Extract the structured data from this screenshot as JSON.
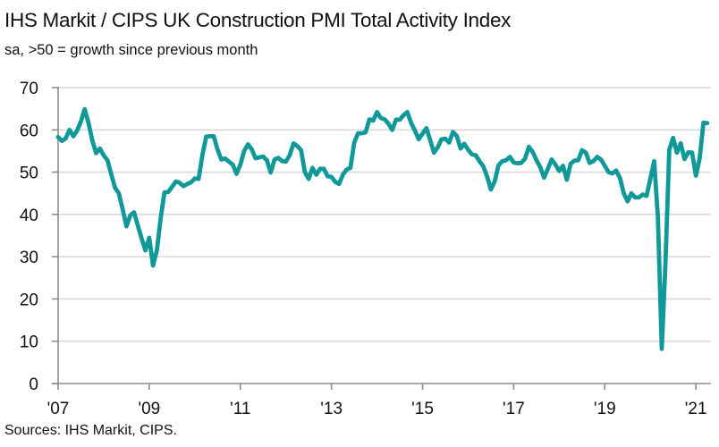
{
  "chart_data": {
    "type": "line",
    "title": "IHS Markit / CIPS UK Construction PMI Total Activity Index",
    "subtitle": "sa, >50 = growth since previous month",
    "source": "Sources: IHS Markit, CIPS.",
    "xlabel": "",
    "ylabel": "",
    "ylim": [
      0,
      70
    ],
    "yticks": [
      0,
      10,
      20,
      30,
      40,
      50,
      60,
      70
    ],
    "xticks": [
      {
        "label": "'07",
        "month_index": 0
      },
      {
        "label": "'09",
        "month_index": 24
      },
      {
        "label": "'11",
        "month_index": 48
      },
      {
        "label": "'13",
        "month_index": 72
      },
      {
        "label": "'15",
        "month_index": 96
      },
      {
        "label": "'17",
        "month_index": 120
      },
      {
        "label": "'19",
        "month_index": 144
      },
      {
        "label": "'21",
        "month_index": 168
      }
    ],
    "x_start": "2007-01",
    "x_frequency": "monthly",
    "x_end": "2021-04",
    "grid": true,
    "legend": "none",
    "line_color": "#11999a",
    "series": [
      {
        "name": "UK Construction PMI Total Activity Index",
        "values": [
          58.3,
          57.4,
          58.0,
          60.0,
          58.5,
          59.8,
          62.0,
          64.9,
          61.6,
          57.5,
          54.5,
          55.6,
          54.0,
          52.8,
          49.5,
          46.3,
          45.0,
          41.2,
          37.2,
          39.8,
          40.5,
          37.4,
          34.3,
          31.5,
          34.5,
          27.9,
          31.5,
          39.0,
          45.2,
          45.3,
          46.5,
          47.8,
          47.5,
          46.7,
          47.2,
          47.6,
          48.5,
          48.4,
          54.0,
          58.4,
          58.5,
          58.5,
          55.3,
          53.0,
          53.2,
          52.5,
          51.8,
          49.6,
          51.8,
          55.0,
          56.6,
          55.4,
          53.3,
          53.5,
          53.7,
          52.8,
          49.9,
          53.0,
          53.4,
          52.6,
          52.5,
          54.0,
          56.8,
          56.2,
          55.2,
          50.0,
          48.4,
          51.0,
          49.4,
          50.8,
          50.8,
          49.0,
          48.9,
          47.7,
          47.2,
          49.4,
          50.6,
          51.0,
          57.0,
          59.2,
          59.2,
          59.4,
          62.5,
          62.2,
          64.2,
          62.8,
          62.5,
          61.5,
          60.0,
          62.4,
          62.4,
          63.5,
          64.2,
          61.6,
          59.8,
          57.8,
          59.1,
          60.4,
          57.6,
          54.6,
          55.9,
          57.8,
          57.9,
          57.0,
          59.5,
          58.6,
          55.6,
          56.7,
          55.3,
          54.2,
          54.0,
          52.6,
          51.4,
          49.0,
          45.9,
          47.8,
          51.6,
          52.6,
          52.8,
          53.6,
          52.3,
          52.1,
          52.2,
          53.2,
          56.0,
          54.8,
          52.8,
          51.2,
          48.7,
          50.8,
          53.0,
          51.8,
          50.3,
          51.5,
          48.2,
          52.0,
          52.7,
          52.8,
          55.2,
          54.6,
          52.2,
          52.6,
          53.6,
          53.0,
          51.5,
          50.0,
          49.7,
          50.4,
          48.6,
          45.0,
          43.1,
          45.0,
          44.0,
          44.0,
          44.7,
          44.4,
          48.4,
          52.6,
          39.3,
          8.2,
          28.9,
          55.3,
          58.1,
          54.6,
          56.8,
          53.1,
          54.7,
          54.6,
          49.2,
          53.3,
          61.7,
          61.6
        ]
      }
    ]
  }
}
